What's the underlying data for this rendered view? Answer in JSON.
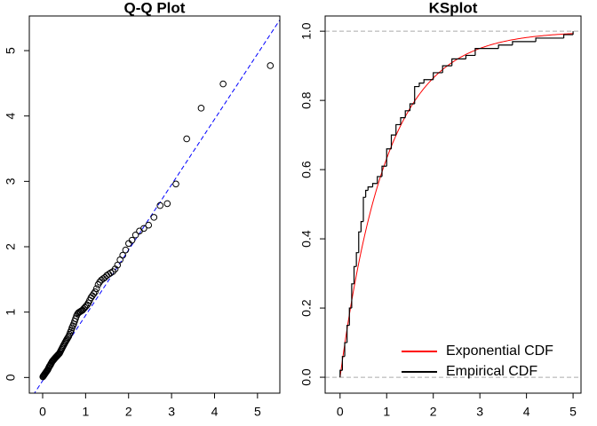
{
  "chart_data": [
    {
      "type": "scatter",
      "title": "Q-Q Plot",
      "xlim": [
        -0.31,
        5.52
      ],
      "ylim": [
        -0.24,
        5.53
      ],
      "xticks": [
        0,
        1,
        2,
        3,
        4,
        5
      ],
      "yticks": [
        0,
        1,
        2,
        3,
        4,
        5
      ],
      "x": [
        0.005,
        0.0151,
        0.0253,
        0.0356,
        0.046,
        0.0566,
        0.0672,
        0.078,
        0.0888,
        0.0998,
        0.1109,
        0.1222,
        0.1335,
        0.1451,
        0.1567,
        0.1684,
        0.1803,
        0.1924,
        0.2046,
        0.2169,
        0.2294,
        0.242,
        0.2549,
        0.2679,
        0.281,
        0.2944,
        0.3079,
        0.3216,
        0.3355,
        0.3496,
        0.3638,
        0.3783,
        0.393,
        0.408,
        0.4231,
        0.4385,
        0.4541,
        0.47,
        0.4861,
        0.5025,
        0.5192,
        0.5361,
        0.5534,
        0.5709,
        0.5888,
        0.607,
        0.6255,
        0.6444,
        0.6636,
        0.6832,
        0.7032,
        0.7236,
        0.7444,
        0.7657,
        0.7875,
        0.8097,
        0.8324,
        0.8557,
        0.8795,
        0.9039,
        0.9289,
        0.9545,
        0.9808,
        1.0079,
        1.0356,
        1.0642,
        1.0936,
        1.1239,
        1.1552,
        1.1874,
        1.2208,
        1.2553,
        1.291,
        1.328,
        1.3664,
        1.4065,
        1.4482,
        1.4917,
        1.5371,
        1.5847,
        1.6348,
        1.6874,
        1.743,
        1.8018,
        1.8643,
        1.931,
        2.0025,
        2.0794,
        2.1628,
        2.2538,
        2.3539,
        2.4651,
        2.5903,
        2.7334,
        2.9004,
        3.1011,
        3.3524,
        3.6889,
        4.1997,
        5.2983
      ],
      "values": [
        0.01,
        0.02,
        0.03,
        0.04,
        0.05,
        0.06,
        0.07,
        0.08,
        0.09,
        0.1,
        0.11,
        0.12,
        0.14,
        0.15,
        0.17,
        0.18,
        0.19,
        0.21,
        0.22,
        0.24,
        0.25,
        0.26,
        0.27,
        0.28,
        0.29,
        0.3,
        0.31,
        0.32,
        0.33,
        0.34,
        0.35,
        0.36,
        0.37,
        0.39,
        0.41,
        0.43,
        0.45,
        0.47,
        0.49,
        0.51,
        0.53,
        0.55,
        0.57,
        0.59,
        0.61,
        0.63,
        0.66,
        0.69,
        0.72,
        0.76,
        0.79,
        0.82,
        0.86,
        0.9,
        0.94,
        0.97,
        0.99,
        1.0,
        1.01,
        1.02,
        1.03,
        1.05,
        1.07,
        1.09,
        1.11,
        1.14,
        1.18,
        1.22,
        1.25,
        1.28,
        1.31,
        1.36,
        1.42,
        1.46,
        1.49,
        1.51,
        1.53,
        1.56,
        1.58,
        1.6,
        1.62,
        1.66,
        1.72,
        1.8,
        1.87,
        1.95,
        2.05,
        2.1,
        2.18,
        2.24,
        2.28,
        2.33,
        2.45,
        2.63,
        2.66,
        2.96,
        3.65,
        4.12,
        4.49,
        4.77
      ],
      "color": "#000000",
      "line": {
        "intercept": -0.05,
        "slope": 1.0,
        "color": "#0000ff"
      }
    },
    {
      "type": "ks",
      "title": "KSplot",
      "xlim": [
        -0.32,
        5.17
      ],
      "ylim": [
        -0.046,
        1.044
      ],
      "xticks": [
        0,
        1,
        2,
        3,
        4,
        5
      ],
      "yticks": [
        {
          "value": 0,
          "label": "0.0"
        },
        0.2,
        0.4,
        0.6,
        0.8,
        {
          "value": 1,
          "label": "1.0"
        }
      ],
      "hlines": [
        0,
        1
      ],
      "series": [
        {
          "name": "Exponential CDF",
          "color": "#ff0000",
          "rate": 1
        },
        {
          "name": "Empirical CDF",
          "color": "#000000",
          "x": [
            0.0,
            0.05,
            0.1,
            0.15,
            0.2,
            0.25,
            0.3,
            0.35,
            0.4,
            0.45,
            0.5,
            0.55,
            0.6,
            0.7,
            0.8,
            0.9,
            1.0,
            1.1,
            1.2,
            1.3,
            1.4,
            1.5,
            1.6,
            1.7,
            1.8,
            2.0,
            2.2,
            2.4,
            2.7,
            2.9,
            3.4,
            3.7,
            4.2,
            4.8,
            5.0
          ],
          "values": [
            0.02,
            0.06,
            0.1,
            0.15,
            0.2,
            0.27,
            0.32,
            0.36,
            0.42,
            0.45,
            0.52,
            0.54,
            0.55,
            0.56,
            0.58,
            0.61,
            0.66,
            0.7,
            0.73,
            0.75,
            0.77,
            0.79,
            0.84,
            0.85,
            0.86,
            0.88,
            0.9,
            0.92,
            0.93,
            0.95,
            0.96,
            0.97,
            0.98,
            0.99,
            1.0
          ]
        }
      ]
    }
  ]
}
